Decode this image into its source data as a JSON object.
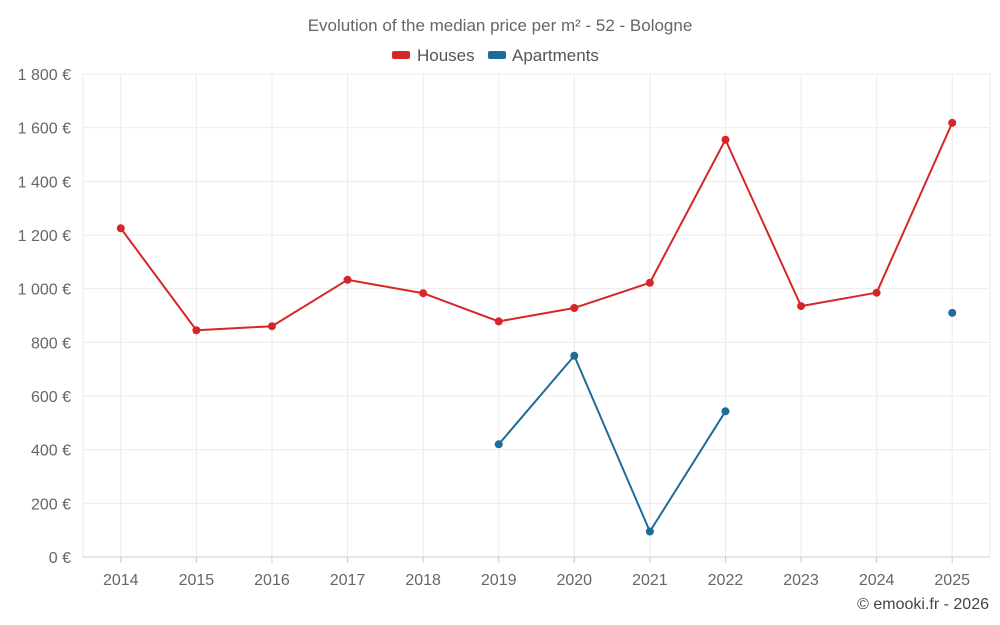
{
  "chart_data": {
    "type": "line",
    "title": "Evolution of the median price per m² - 52 - Bologne",
    "categories": [
      "2014",
      "2015",
      "2016",
      "2017",
      "2018",
      "2019",
      "2020",
      "2021",
      "2022",
      "2023",
      "2024",
      "2025"
    ],
    "series": [
      {
        "name": "Houses",
        "color": "#d62728",
        "values": [
          1225,
          845,
          860,
          1033,
          983,
          878,
          928,
          1022,
          1555,
          935,
          985,
          1618
        ]
      },
      {
        "name": "Apartments",
        "color": "#1f6b9a",
        "values": [
          null,
          null,
          null,
          null,
          null,
          420,
          750,
          95,
          543,
          null,
          null,
          910
        ]
      }
    ],
    "ylim": [
      0,
      1800
    ],
    "yticks": [
      0,
      200,
      400,
      600,
      800,
      1000,
      1200,
      1400,
      1600,
      1800
    ],
    "ytick_labels": [
      "0 €",
      "200 €",
      "400 €",
      "600 €",
      "800 €",
      "1 000 €",
      "1 200 €",
      "1 400 €",
      "1 600 €",
      "1 800 €"
    ],
    "legend_position": "top-center",
    "grid": true,
    "credit": "© emooki.fr - 2026"
  }
}
